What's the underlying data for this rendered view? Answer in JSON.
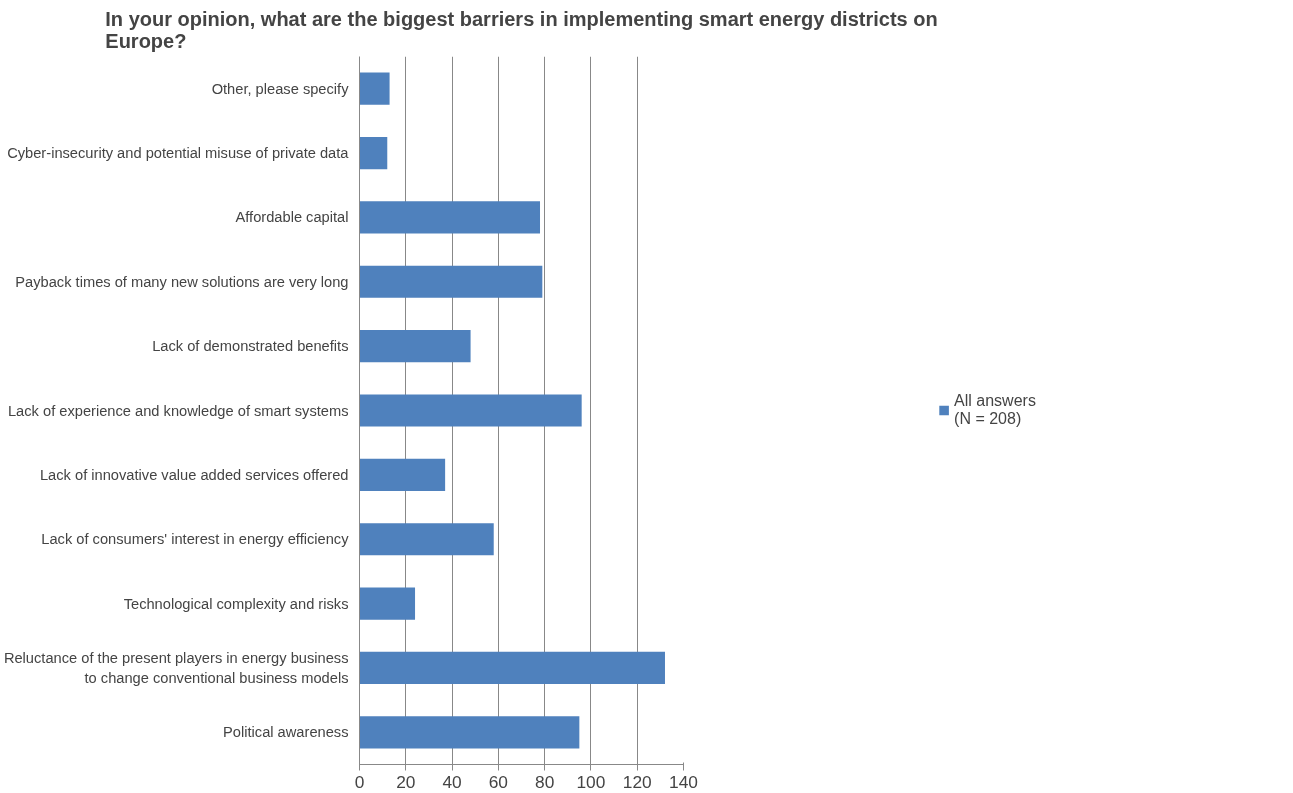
{
  "chart_data": {
    "type": "bar",
    "orientation": "horizontal",
    "title": "In your opinion, what are the biggest barriers in implementing smart energy districts on\nEurope?",
    "categories": [
      "Other, please specify",
      "Cyber-insecurity and potential misuse of private data",
      "Affordable capital",
      "Payback times of many new solutions are very long",
      "Lack of demonstrated benefits",
      "Lack of experience and knowledge of smart systems",
      "Lack of innovative value added services offered",
      "Lack of consumers' interest in energy efficiency",
      "Technological complexity and risks",
      "Reluctance of the present players in energy business\nto change conventional business models",
      "Political awareness"
    ],
    "series": [
      {
        "name": "All answers\n(N = 208)",
        "color": "#4f81bd",
        "values": [
          13,
          12,
          78,
          79,
          48,
          96,
          37,
          58,
          24,
          132,
          95
        ]
      }
    ],
    "xlim": [
      0,
      140
    ],
    "xticks": [
      0,
      20,
      40,
      60,
      80,
      100,
      120,
      140
    ],
    "grid": "x",
    "legend": "right"
  }
}
